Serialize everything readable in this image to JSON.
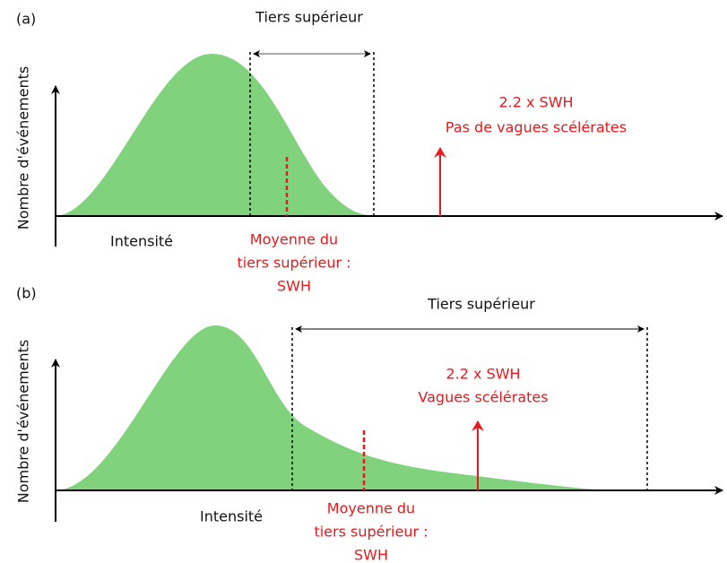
{
  "panels": [
    {
      "label": "(a)",
      "y_axis": "Nombre d'événements",
      "x_axis": "Intensité",
      "range": "Tiers supérieur",
      "mean": [
        "Moyenne du",
        "tiers supérieur :",
        "SWH"
      ],
      "threshold": [
        "2.2 x SWH",
        "Pas de vagues scélérates"
      ]
    },
    {
      "label": "(b)",
      "y_axis": "Nombre d'événements",
      "x_axis": "Intensité",
      "range": "Tiers supérieur",
      "mean": [
        "Moyenne du",
        "tiers supérieur :",
        "SWH"
      ],
      "threshold": [
        "2.2 x SWH",
        "Vagues scélérates"
      ]
    }
  ]
}
